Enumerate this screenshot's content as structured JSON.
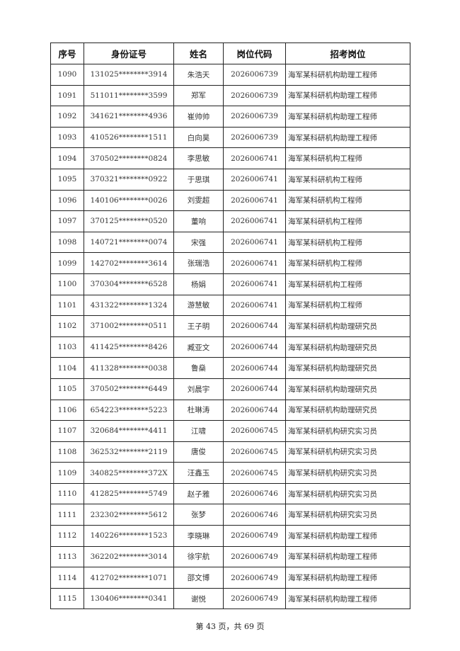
{
  "headers": [
    "序号",
    "身份证号",
    "姓名",
    "岗位代码",
    "招考岗位"
  ],
  "rows": [
    [
      "1090",
      "131025********3914",
      "朱浩天",
      "2026006739",
      "海军某科研机构助理工程师"
    ],
    [
      "1091",
      "511011********3599",
      "郑军",
      "2026006739",
      "海军某科研机构助理工程师"
    ],
    [
      "1092",
      "341621********4936",
      "崔帅帅",
      "2026006739",
      "海军某科研机构助理工程师"
    ],
    [
      "1093",
      "410526********1511",
      "白向昊",
      "2026006739",
      "海军某科研机构助理工程师"
    ],
    [
      "1094",
      "370502********0824",
      "李思敏",
      "2026006741",
      "海军某科研机构工程师"
    ],
    [
      "1095",
      "370321********0922",
      "于思琪",
      "2026006741",
      "海军某科研机构工程师"
    ],
    [
      "1096",
      "140106********0026",
      "刘雯超",
      "2026006741",
      "海军某科研机构工程师"
    ],
    [
      "1097",
      "370125********0520",
      "董响",
      "2026006741",
      "海军某科研机构工程师"
    ],
    [
      "1098",
      "140721********0074",
      "宋强",
      "2026006741",
      "海军某科研机构工程师"
    ],
    [
      "1099",
      "142702********3614",
      "张瑞浩",
      "2026006741",
      "海军某科研机构工程师"
    ],
    [
      "1100",
      "370304********6528",
      "杨娟",
      "2026006741",
      "海军某科研机构工程师"
    ],
    [
      "1101",
      "431322********1324",
      "游慧敏",
      "2026006741",
      "海军某科研机构工程师"
    ],
    [
      "1102",
      "371002********0511",
      "王子明",
      "2026006744",
      "海军某科研机构助理研究员"
    ],
    [
      "1103",
      "411425********8426",
      "臧亚文",
      "2026006744",
      "海军某科研机构助理研究员"
    ],
    [
      "1104",
      "411328********0038",
      "鲁燊",
      "2026006744",
      "海军某科研机构助理研究员"
    ],
    [
      "1105",
      "370502********6449",
      "刘晨宇",
      "2026006744",
      "海军某科研机构助理研究员"
    ],
    [
      "1106",
      "654223********5223",
      "杜琳涛",
      "2026006744",
      "海军某科研机构助理研究员"
    ],
    [
      "1107",
      "320684********4411",
      "江啸",
      "2026006745",
      "海军某科研机构研究实习员"
    ],
    [
      "1108",
      "362532********2119",
      "唐俊",
      "2026006745",
      "海军某科研机构研究实习员"
    ],
    [
      "1109",
      "340825********372X",
      "汪鑫玉",
      "2026006745",
      "海军某科研机构研究实习员"
    ],
    [
      "1110",
      "412825********5749",
      "赵子雅",
      "2026006746",
      "海军某科研机构研究实习员"
    ],
    [
      "1111",
      "232302********5612",
      "张梦",
      "2026006746",
      "海军某科研机构研究实习员"
    ],
    [
      "1112",
      "140226********1523",
      "李晓琳",
      "2026006749",
      "海军某科研机构助理工程师"
    ],
    [
      "1113",
      "362202********3014",
      "徐宇航",
      "2026006749",
      "海军某科研机构助理工程师"
    ],
    [
      "1114",
      "412702********1071",
      "邵文博",
      "2026006749",
      "海军某科研机构助理工程师"
    ],
    [
      "1115",
      "130406********0341",
      "谢悦",
      "2026006749",
      "海军某科研机构助理工程师"
    ]
  ],
  "footer": "第 43 页，共 69 页"
}
